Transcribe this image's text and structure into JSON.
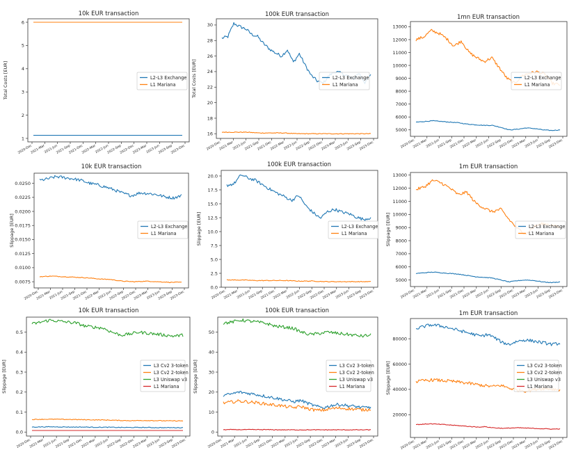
{
  "chart_data": [
    {
      "id": "p11",
      "type": "line",
      "title": "10k EUR transaction",
      "ylabel": "Total Costs [EUR]",
      "ylim": [
        0.85,
        6.15
      ],
      "yticks": [
        1,
        2,
        3,
        4,
        5,
        6
      ],
      "x_ticks": [
        "2020-Dec",
        "2021-Mar",
        "2021-Jun",
        "2021-Sep",
        "2021-Dec",
        "2022-Mar",
        "2022-Jun",
        "2022-Sep",
        "2022-Dec",
        "2023-Mar",
        "2023-Jun",
        "2023-Sep",
        "2023-Dec"
      ],
      "legend": "center-right",
      "series": [
        {
          "name": "L2-L3 Exchange",
          "color": "#1f77b4",
          "values": [
            1.13,
            1.13,
            1.13,
            1.13,
            1.13,
            1.13,
            1.13,
            1.13,
            1.13,
            1.13,
            1.13,
            1.13,
            1.13,
            1.13,
            1.13
          ]
        },
        {
          "name": "L1 Mariana",
          "color": "#ff7f0e",
          "values": [
            6.0,
            6.0,
            6.0,
            6.0,
            6.0,
            6.0,
            6.0,
            6.0,
            6.0,
            6.0,
            6.0,
            6.0,
            6.0,
            6.0,
            6.0
          ]
        }
      ]
    },
    {
      "id": "p12",
      "type": "line",
      "title": "100k EUR transaction",
      "ylabel": "Total Costs [EUR]",
      "ylim": [
        15.4,
        30.8
      ],
      "yticks": [
        16,
        18,
        20,
        22,
        24,
        26,
        28,
        30
      ],
      "x_ticks": [
        "2020-Dec",
        "2021-Mar",
        "2021-Jun",
        "2021-Sep",
        "2021-Dec",
        "2022-Mar",
        "2022-Jun",
        "2022-Sep",
        "2022-Dec",
        "2023-Mar",
        "2023-Jun",
        "2023-Sep",
        "2023-Dec"
      ],
      "legend": "center-right",
      "series": [
        {
          "name": "L2-L3 Exchange",
          "color": "#1f77b4",
          "values": [
            28.3,
            28.5,
            30.2,
            29.8,
            29.5,
            28.8,
            28.5,
            27.6,
            26.9,
            26.4,
            26.0,
            26.8,
            25.2,
            26.3,
            24.8,
            23.5,
            22.8,
            22.5,
            23.5,
            24.0,
            23.8,
            23.5,
            23.0,
            23.8,
            22.6,
            23.5
          ]
        },
        {
          "name": "L1 Mariana",
          "color": "#ff7f0e",
          "values": [
            16.2,
            16.2,
            16.2,
            16.1,
            16.1,
            16.1,
            16.0,
            16.0,
            16.0,
            16.0,
            16.0,
            16.0,
            16.0
          ]
        }
      ]
    },
    {
      "id": "p13",
      "type": "line",
      "title": "1mn EUR transaction",
      "ylabel": "",
      "ylim": [
        4500,
        13400
      ],
      "yticks": [
        5000,
        6000,
        7000,
        8000,
        9000,
        10000,
        11000,
        12000,
        13000
      ],
      "x_ticks": [
        "2020-Dec",
        "2021-Mar",
        "2021-Jun",
        "2021-Sep",
        "2021-Dec",
        "2022-Mar",
        "2022-Jun",
        "2022-Sep",
        "2022-Dec",
        "2023-Mar",
        "2023-Jun",
        "2023-Sep",
        "2023-Dec"
      ],
      "legend": "center-right",
      "series": [
        {
          "name": "L2-L3 Exchange",
          "color": "#1f77b4",
          "values": [
            5600,
            5650,
            5700,
            5650,
            5600,
            5550,
            5450,
            5400,
            5350,
            5350,
            5200,
            5000,
            5050,
            5150,
            5100,
            5000,
            4950,
            5000
          ]
        },
        {
          "name": "L1 Mariana",
          "color": "#ff7f0e",
          "values": [
            12000,
            12200,
            12700,
            12500,
            12100,
            11500,
            11900,
            11000,
            10600,
            10300,
            10600,
            9800,
            9000,
            8600,
            9200,
            9400,
            9500,
            9300,
            8600,
            8500
          ]
        }
      ]
    },
    {
      "id": "p21",
      "type": "line",
      "title": "10k EUR transaction",
      "ylabel": "Slippage [EUR]",
      "ylim": [
        0.0064,
        0.0268
      ],
      "yticks": [
        0.0075,
        0.01,
        0.0125,
        0.015,
        0.0175,
        0.02,
        0.0225,
        0.025
      ],
      "ytick_labels": [
        "0.0075",
        "0.0100",
        "0.0125",
        "0.0150",
        "0.0175",
        "0.0200",
        "0.0225",
        "0.0250"
      ],
      "x_ticks": [
        "2020-Dec",
        "2021-Mar",
        "2021-Jun",
        "2021-Sep",
        "2021-Dec",
        "2022-Mar",
        "2022-Jun",
        "2022-Sep",
        "2022-Dec",
        "2023-Mar",
        "2023-Jun",
        "2023-Sep",
        "2023-Dec"
      ],
      "legend": "center-right",
      "series": [
        {
          "name": "L2-L3 Exchange",
          "color": "#1f77b4",
          "values": [
            0.0255,
            0.0258,
            0.0262,
            0.026,
            0.0258,
            0.0255,
            0.025,
            0.0247,
            0.0243,
            0.0238,
            0.0232,
            0.0228,
            0.0233,
            0.0232,
            0.023,
            0.0226,
            0.0224,
            0.0228
          ]
        },
        {
          "name": "L1 Mariana",
          "color": "#ff7f0e",
          "values": [
            0.0084,
            0.0085,
            0.0084,
            0.0083,
            0.0082,
            0.008,
            0.0079,
            0.0076,
            0.0075,
            0.0076,
            0.0075,
            0.0074,
            0.0074
          ]
        }
      ]
    },
    {
      "id": "p22",
      "type": "line",
      "title": "100k EUR transaction",
      "ylabel": "Slippage [EUR]",
      "ylim": [
        0,
        21
      ],
      "yticks": [
        0,
        2.5,
        5,
        7.5,
        10,
        12.5,
        15,
        17.5,
        20
      ],
      "ytick_labels": [
        "0.0",
        "2.5",
        "5.0",
        "7.5",
        "10.0",
        "12.5",
        "15.0",
        "17.5",
        "20.0"
      ],
      "x_ticks": [
        "2020-Dec",
        "2021-Mar",
        "2021-Jun",
        "2021-Sep",
        "2021-Dec",
        "2022-Mar",
        "2022-Jun",
        "2022-Sep",
        "2022-Dec",
        "2023-Mar",
        "2023-Jun",
        "2023-Sep",
        "2023-Dec"
      ],
      "legend": "center-right",
      "series": [
        {
          "name": "L2-L3 Exchange",
          "color": "#1f77b4",
          "values": [
            18.3,
            18.6,
            20.2,
            19.6,
            19.2,
            18.4,
            17.6,
            16.9,
            16.3,
            15.6,
            16.5,
            14.6,
            13.4,
            12.4,
            13.6,
            14.0,
            13.5,
            13.2,
            12.6,
            12.2,
            12.5
          ]
        },
        {
          "name": "L1 Mariana",
          "color": "#ff7f0e",
          "values": [
            1.3,
            1.3,
            1.2,
            1.2,
            1.2,
            1.1,
            1.1,
            1.0,
            1.0,
            1.0,
            1.0
          ]
        }
      ]
    },
    {
      "id": "p23",
      "type": "line",
      "title": "1m EUR transaction",
      "ylabel": "Slippage [EUR]",
      "ylim": [
        4500,
        13200
      ],
      "yticks": [
        5000,
        6000,
        7000,
        8000,
        9000,
        10000,
        11000,
        12000,
        13000
      ],
      "x_ticks": [
        "2020-Dec",
        "2021-Mar",
        "2021-Jun",
        "2021-Sep",
        "2021-Dec",
        "2022-Mar",
        "2022-Jun",
        "2022-Sep",
        "2022-Dec",
        "2023-Mar",
        "2023-Jun",
        "2023-Sep",
        "2023-Dec"
      ],
      "legend": "center-right",
      "series": [
        {
          "name": "L2-L3 Exchange",
          "color": "#1f77b4",
          "values": [
            5500,
            5550,
            5600,
            5550,
            5500,
            5450,
            5350,
            5250,
            5200,
            5150,
            5000,
            4850,
            4950,
            5000,
            4950,
            4850,
            4800,
            4850
          ]
        },
        {
          "name": "L1 Mariana",
          "color": "#ff7f0e",
          "values": [
            11900,
            12100,
            12600,
            12400,
            12000,
            11500,
            11700,
            10900,
            10500,
            10200,
            10400,
            9600,
            8900,
            8500,
            9100,
            9300,
            9200,
            9000
          ]
        }
      ]
    },
    {
      "id": "p31",
      "type": "line",
      "title": "10k EUR transaction",
      "ylabel": "Slippage [EUR]",
      "ylim": [
        -0.02,
        0.575
      ],
      "yticks": [
        0,
        0.1,
        0.2,
        0.3,
        0.4,
        0.5
      ],
      "ytick_labels": [
        "0.0",
        "0.1",
        "0.2",
        "0.3",
        "0.4",
        "0.5"
      ],
      "x_ticks": [
        "2020-Dec",
        "2021-Mar",
        "2021-Jun",
        "2021-Sep",
        "2021-Dec",
        "2022-Mar",
        "2022-Jun",
        "2022-Sep",
        "2022-Dec",
        "2023-Mar",
        "2023-Jun",
        "2023-Sep",
        "2023-Dec"
      ],
      "legend": "lower-right",
      "series": [
        {
          "name": "L3 Cv2 3-token",
          "color": "#1f77b4",
          "values": [
            0.025,
            0.026,
            0.026,
            0.025,
            0.025,
            0.024,
            0.024,
            0.023,
            0.023,
            0.023,
            0.022,
            0.022,
            0.022
          ]
        },
        {
          "name": "L3 Cv2 2-token",
          "color": "#ff7f0e",
          "values": [
            0.063,
            0.064,
            0.064,
            0.063,
            0.062,
            0.061,
            0.06,
            0.058,
            0.057,
            0.058,
            0.057,
            0.056,
            0.056
          ]
        },
        {
          "name": "L3 Uniswap v3",
          "color": "#2ca02c",
          "values": [
            0.54,
            0.55,
            0.56,
            0.555,
            0.55,
            0.545,
            0.53,
            0.525,
            0.52,
            0.5,
            0.485,
            0.49,
            0.5,
            0.495,
            0.49,
            0.485,
            0.48,
            0.485
          ]
        },
        {
          "name": "L1 Mariana",
          "color": "#d62728",
          "values": [
            0.008,
            0.008,
            0.008,
            0.008,
            0.008,
            0.008,
            0.008,
            0.008,
            0.008,
            0.008,
            0.008
          ]
        }
      ]
    },
    {
      "id": "p32",
      "type": "line",
      "title": "100k EUR transaction",
      "ylabel": "Slippage [EUR]",
      "ylim": [
        -2,
        57.5
      ],
      "yticks": [
        0,
        10,
        20,
        30,
        40,
        50
      ],
      "x_ticks": [
        "2020-Dec",
        "2021-Mar",
        "2021-Jun",
        "2021-Sep",
        "2021-Dec",
        "2022-Mar",
        "2022-Jun",
        "2022-Sep",
        "2022-Dec",
        "2023-Mar",
        "2023-Jun",
        "2023-Sep",
        "2023-Dec"
      ],
      "legend": "lower-right",
      "series": [
        {
          "name": "L3 Cv2 3-token",
          "color": "#1f77b4",
          "values": [
            18.3,
            19.0,
            20.0,
            19.5,
            19.0,
            18.2,
            17.5,
            16.8,
            16.0,
            15.2,
            15.8,
            14.2,
            12.8,
            12.2,
            13.4,
            13.8,
            13.2,
            12.8,
            12.2,
            12.5
          ]
        },
        {
          "name": "L3 Cv2 2-token",
          "color": "#ff7f0e",
          "values": [
            14.5,
            15.0,
            15.5,
            15.2,
            14.8,
            14.3,
            13.8,
            13.4,
            12.8,
            12.2,
            12.8,
            11.6,
            10.9,
            11.0,
            11.8,
            12.0,
            11.7,
            11.4,
            11.1,
            11.4
          ]
        },
        {
          "name": "L3 Uniswap v3",
          "color": "#2ca02c",
          "values": [
            54.5,
            55.0,
            56.0,
            55.5,
            55.0,
            54.3,
            53.0,
            52.5,
            52.0,
            50.0,
            48.8,
            49.3,
            50.0,
            49.5,
            49.0,
            48.5,
            48.0,
            48.5
          ]
        },
        {
          "name": "L1 Mariana",
          "color": "#d62728",
          "values": [
            1.2,
            1.2,
            1.2,
            1.2,
            1.1,
            1.1,
            1.1,
            1.1,
            1.1,
            1.1,
            1.1
          ]
        }
      ]
    },
    {
      "id": "p33",
      "type": "line",
      "title": "1m EUR transaction",
      "ylabel": "Slippage [EUR]",
      "ylim": [
        2000,
        96000
      ],
      "yticks": [
        20000,
        40000,
        60000,
        80000
      ],
      "x_ticks": [
        "2020-Dec",
        "2021-Mar",
        "2021-Jun",
        "2021-Sep",
        "2021-Dec",
        "2022-Mar",
        "2022-Jun",
        "2022-Sep",
        "2022-Dec",
        "2023-Mar",
        "2023-Jun",
        "2023-Sep",
        "2023-Dec"
      ],
      "legend": "center-right",
      "series": [
        {
          "name": "L3 Cv2 3-token",
          "color": "#1f77b4",
          "values": [
            88000,
            89500,
            91000,
            90500,
            89500,
            88000,
            86500,
            85000,
            83500,
            82000,
            83500,
            80500,
            77000,
            75500,
            78000,
            79000,
            78500,
            77500,
            76500,
            75500,
            76500
          ]
        },
        {
          "name": "L3 Cv2 2-token",
          "color": "#ff7f0e",
          "values": [
            46000,
            47000,
            47500,
            47000,
            46500,
            45800,
            45000,
            44000,
            43000,
            42200,
            43200,
            41000,
            39500,
            38700,
            40000,
            40700,
            40300,
            39800
          ]
        },
        {
          "name": "L3 Uniswap v3",
          "color": "#2ca02c",
          "values": []
        },
        {
          "name": "L1 Mariana",
          "color": "#d62728",
          "values": [
            12200,
            12400,
            12800,
            12500,
            12200,
            11800,
            11400,
            11000,
            10600,
            10200,
            10500,
            9800,
            9400,
            9200,
            9500,
            9600,
            9400,
            9200,
            9000,
            8800,
            8600,
            8800
          ]
        }
      ]
    }
  ]
}
